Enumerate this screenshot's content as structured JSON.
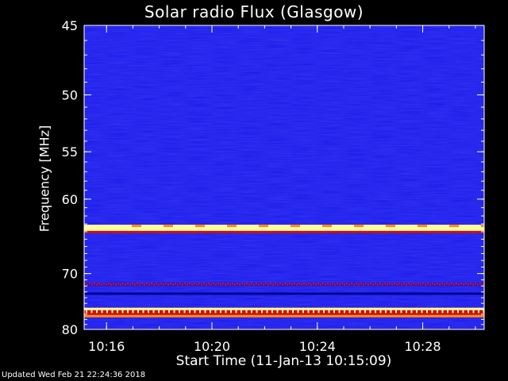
{
  "chart_data": {
    "type": "heatmap",
    "title": "Solar radio Flux (Glasgow)",
    "xlabel": "Start Time (11-Jan-13 10:15:09)",
    "ylabel": "Frequency [MHz]",
    "x_unit": "minutes",
    "xlim": [
      "10:15:09",
      "10:30:20"
    ],
    "x_ticks": [
      "10:16",
      "10:20",
      "10:24",
      "10:28"
    ],
    "ylim": [
      45,
      80
    ],
    "y_ticks": [
      45,
      50,
      55,
      60,
      70,
      80
    ],
    "y_minor_step": 1,
    "y_scale": "reciprocal",
    "colormap": {
      "background": "#1818e8",
      "low": "#0000a0",
      "mid": "#cc1010",
      "high": "#fffc9a"
    },
    "bands": [
      {
        "name": "strong-interference",
        "freq_from": 63.1,
        "freq_to": 63.9,
        "intensity": "high"
      },
      {
        "name": "red-edge",
        "freq_from": 63.9,
        "freq_to": 64.2,
        "intensity": "mid"
      },
      {
        "name": "red-speckle-band",
        "freq_from": 71.5,
        "freq_to": 72.0,
        "intensity": "mid"
      },
      {
        "name": "dark-stripe",
        "freq_from": 73.1,
        "freq_to": 73.5,
        "intensity": "low"
      },
      {
        "name": "pulsed-interference",
        "freq_from": 75.8,
        "freq_to": 77.6,
        "intensity": "mid-high"
      }
    ]
  },
  "footer": "Updated Wed Feb 21 22:24:36 2018"
}
